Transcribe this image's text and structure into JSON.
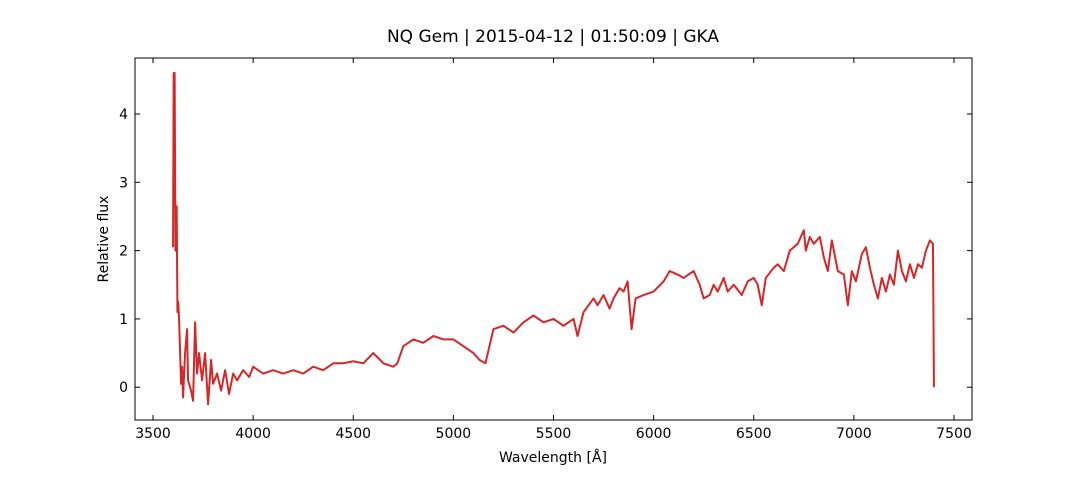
{
  "chart_data": {
    "type": "line",
    "title": "NQ Gem | 2015-04-12 | 01:50:09 | GKA",
    "x_label": "Wavelength [Å]",
    "y_label": "Relative flux",
    "xlim": [
      3410,
      7590
    ],
    "ylim": [
      -0.48,
      4.82
    ],
    "xticks": [
      3500,
      4000,
      4500,
      5000,
      5500,
      6000,
      6500,
      7000,
      7500
    ],
    "yticks": [
      0,
      1,
      2,
      3,
      4
    ],
    "grid": false,
    "series": [
      {
        "name": "NQ Gem",
        "color": "#d62728",
        "x": [
          3600,
          3603,
          3608,
          3612,
          3618,
          3622,
          3626,
          3630,
          3640,
          3645,
          3650,
          3660,
          3670,
          3675,
          3690,
          3700,
          3710,
          3720,
          3730,
          3745,
          3760,
          3775,
          3790,
          3800,
          3820,
          3840,
          3860,
          3880,
          3900,
          3920,
          3950,
          3980,
          4000,
          4050,
          4100,
          4150,
          4200,
          4250,
          4300,
          4350,
          4400,
          4450,
          4500,
          4550,
          4600,
          4650,
          4700,
          4720,
          4750,
          4800,
          4850,
          4900,
          4950,
          5000,
          5050,
          5100,
          5130,
          5160,
          5180,
          5200,
          5250,
          5300,
          5350,
          5400,
          5450,
          5500,
          5550,
          5600,
          5620,
          5650,
          5700,
          5720,
          5750,
          5780,
          5800,
          5830,
          5850,
          5870,
          5890,
          5910,
          5950,
          6000,
          6050,
          6080,
          6120,
          6150,
          6200,
          6230,
          6250,
          6280,
          6300,
          6320,
          6350,
          6370,
          6400,
          6440,
          6470,
          6500,
          6520,
          6540,
          6560,
          6600,
          6620,
          6650,
          6680,
          6720,
          6750,
          6760,
          6780,
          6800,
          6830,
          6850,
          6870,
          6890,
          6920,
          6950,
          6970,
          6990,
          7010,
          7040,
          7060,
          7080,
          7100,
          7120,
          7140,
          7160,
          7180,
          7200,
          7220,
          7240,
          7260,
          7280,
          7300,
          7320,
          7340,
          7360,
          7380,
          7395,
          7400
        ],
        "values": [
          2.05,
          4.6,
          4.6,
          2.0,
          2.65,
          1.1,
          1.25,
          1.0,
          0.05,
          0.3,
          -0.15,
          0.5,
          0.85,
          0.1,
          -0.05,
          -0.2,
          0.95,
          0.2,
          0.5,
          0.1,
          0.5,
          -0.25,
          0.4,
          0.05,
          0.2,
          -0.05,
          0.25,
          -0.1,
          0.2,
          0.1,
          0.25,
          0.15,
          0.3,
          0.2,
          0.25,
          0.2,
          0.25,
          0.2,
          0.3,
          0.25,
          0.35,
          0.35,
          0.38,
          0.35,
          0.5,
          0.35,
          0.3,
          0.35,
          0.6,
          0.7,
          0.65,
          0.75,
          0.7,
          0.7,
          0.6,
          0.5,
          0.4,
          0.35,
          0.6,
          0.85,
          0.9,
          0.8,
          0.95,
          1.05,
          0.95,
          1.0,
          0.9,
          1.0,
          0.75,
          1.1,
          1.3,
          1.2,
          1.35,
          1.15,
          1.3,
          1.45,
          1.4,
          1.55,
          0.85,
          1.3,
          1.35,
          1.4,
          1.55,
          1.7,
          1.65,
          1.6,
          1.7,
          1.5,
          1.3,
          1.35,
          1.5,
          1.4,
          1.6,
          1.4,
          1.5,
          1.35,
          1.55,
          1.6,
          1.5,
          1.2,
          1.6,
          1.75,
          1.8,
          1.7,
          2.0,
          2.1,
          2.3,
          2.0,
          2.2,
          2.1,
          2.2,
          1.9,
          1.7,
          2.15,
          1.7,
          1.65,
          1.2,
          1.7,
          1.55,
          1.95,
          2.05,
          1.75,
          1.5,
          1.3,
          1.6,
          1.4,
          1.65,
          1.5,
          2.0,
          1.7,
          1.55,
          1.8,
          1.6,
          1.8,
          1.75,
          2.0,
          2.15,
          2.1,
          0.0
        ]
      }
    ]
  }
}
